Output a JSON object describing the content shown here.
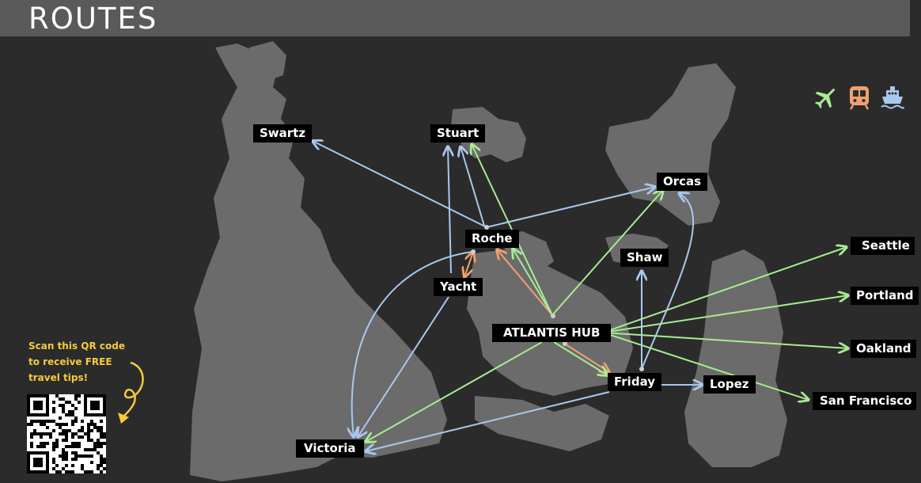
{
  "header": {
    "title": "ROUTES"
  },
  "colors": {
    "air": "#a8ec93",
    "rail": "#f0a070",
    "ferry": "#a9c8ee",
    "land": "#6b6b6b",
    "qr_text": "#f5cc3a"
  },
  "legend": {
    "icons": [
      "plane-icon",
      "train-icon",
      "ferry-icon"
    ]
  },
  "locations": {
    "swartz": "Swartz",
    "stuart": "Stuart",
    "orcas": "Orcas",
    "roche": "Roche",
    "yacht": "Yacht",
    "shaw": "Shaw",
    "atlantis_hub": "ATLANTIS HUB",
    "friday": "Friday",
    "lopez": "Lopez",
    "victoria": "Victoria",
    "seattle": "Seattle",
    "portland": "Portland",
    "oakland": "Oakland",
    "san_francisco": "San Francisco"
  },
  "routes": [
    {
      "from": "Roche",
      "to": "Swartz",
      "mode": "ferry"
    },
    {
      "from": "Roche",
      "to": "Stuart",
      "mode": "ferry"
    },
    {
      "from": "Roche",
      "to": "Orcas",
      "mode": "ferry"
    },
    {
      "from": "Roche",
      "to": "Victoria",
      "mode": "ferry"
    },
    {
      "from": "Roche",
      "to": "Yacht",
      "mode": "rail"
    },
    {
      "from": "Yacht",
      "to": "Stuart",
      "mode": "ferry"
    },
    {
      "from": "Yacht",
      "to": "Victoria",
      "mode": "ferry"
    },
    {
      "from": "ATLANTIS HUB",
      "to": "Stuart",
      "mode": "air"
    },
    {
      "from": "ATLANTIS HUB",
      "to": "Roche",
      "mode": "air"
    },
    {
      "from": "ATLANTIS HUB",
      "to": "Roche",
      "mode": "rail"
    },
    {
      "from": "ATLANTIS HUB",
      "to": "Orcas",
      "mode": "air"
    },
    {
      "from": "ATLANTIS HUB",
      "to": "Victoria",
      "mode": "air"
    },
    {
      "from": "ATLANTIS HUB",
      "to": "Friday",
      "mode": "air"
    },
    {
      "from": "ATLANTIS HUB",
      "to": "Friday",
      "mode": "rail"
    },
    {
      "from": "ATLANTIS HUB",
      "to": "Seattle",
      "mode": "air"
    },
    {
      "from": "ATLANTIS HUB",
      "to": "Portland",
      "mode": "air"
    },
    {
      "from": "ATLANTIS HUB",
      "to": "Oakland",
      "mode": "air"
    },
    {
      "from": "ATLANTIS HUB",
      "to": "San Francisco",
      "mode": "air"
    },
    {
      "from": "Friday",
      "to": "Shaw",
      "mode": "ferry"
    },
    {
      "from": "Friday",
      "to": "Orcas",
      "mode": "ferry"
    },
    {
      "from": "Friday",
      "to": "Lopez",
      "mode": "ferry"
    },
    {
      "from": "Friday",
      "to": "Victoria",
      "mode": "ferry"
    }
  ],
  "qr": {
    "text": "Scan this QR code to receive FREE travel tips!",
    "code_icon": "qr-code-icon",
    "arrow_icon": "curly-arrow-icon"
  }
}
